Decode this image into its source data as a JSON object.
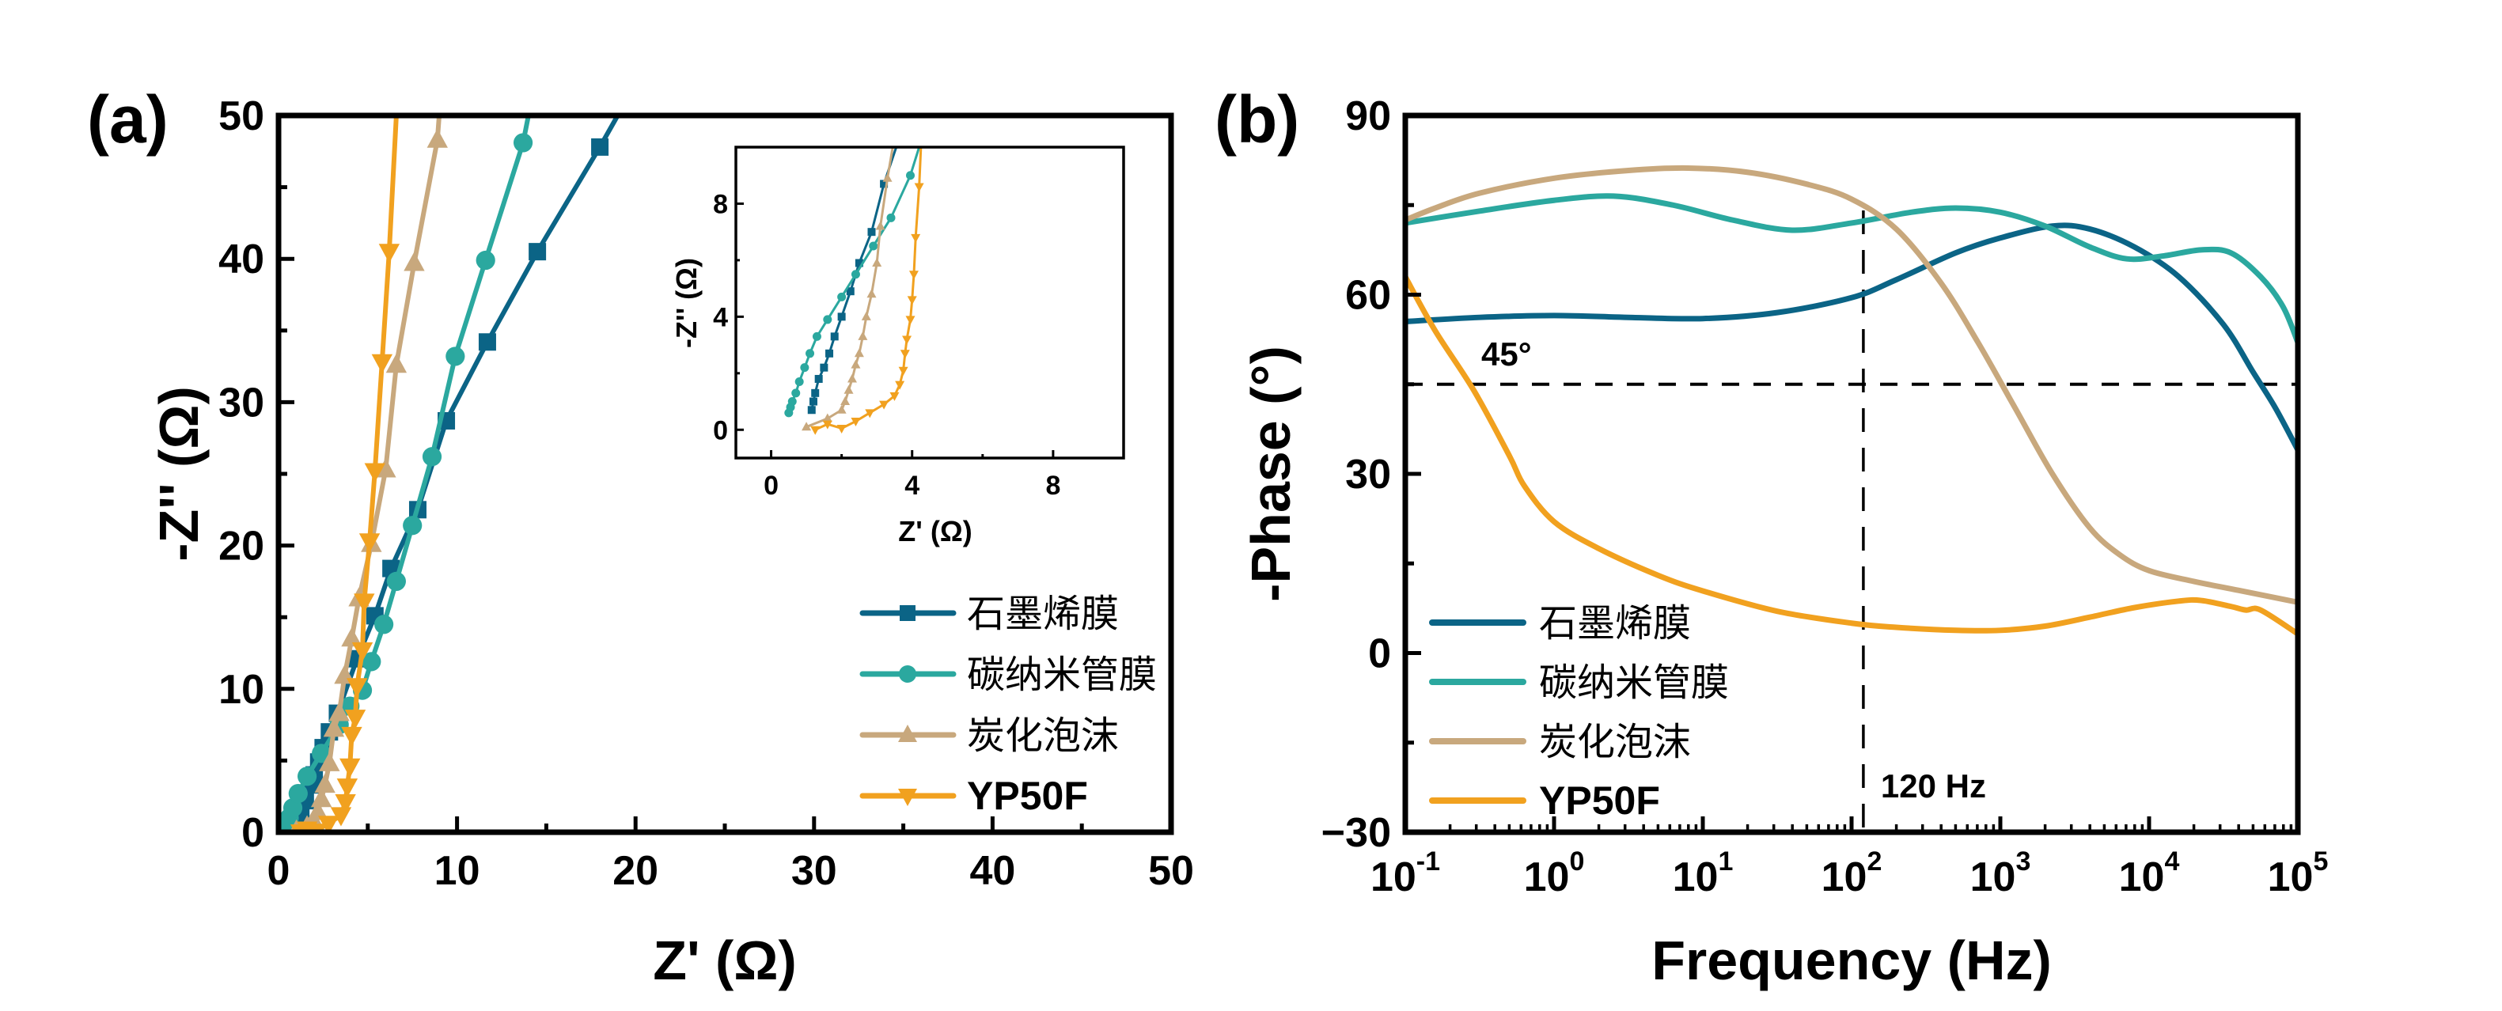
{
  "figure": {
    "panels": [
      "(a)",
      "(b)"
    ]
  },
  "colors": {
    "graphene": "#0b6486",
    "cnt": "#2ba89f",
    "foam": "#c8a87d",
    "yp50f": "#f1a11f"
  },
  "chart_data": [
    {
      "id": "a",
      "type": "scatter",
      "panel_label": "(a)",
      "title": "",
      "xlabel": "Z' (Ω)",
      "ylabel": "-Z'' (Ω)",
      "xlim": [
        0,
        50
      ],
      "ylim": [
        0,
        50
      ],
      "xticks": [
        0,
        10,
        20,
        30,
        40,
        50
      ],
      "yticks": [
        0,
        10,
        20,
        30,
        40,
        50
      ],
      "xtick_labels": [
        "0",
        "10",
        "20",
        "30",
        "40",
        "50"
      ],
      "ytick_labels": [
        "0",
        "10",
        "20",
        "30",
        "40",
        "50"
      ],
      "grid": false,
      "legend_position": "lower-right",
      "series": [
        {
          "name": "石墨烯膜",
          "key": "graphene",
          "marker": "square",
          "points": [
            [
              1.15,
              0.7
            ],
            [
              1.25,
              1.3
            ],
            [
              1.5,
              2.2
            ],
            [
              1.8,
              3.3
            ],
            [
              2.0,
              4.0
            ],
            [
              2.25,
              4.9
            ],
            [
              2.5,
              5.9
            ],
            [
              2.85,
              7.0
            ],
            [
              3.3,
              8.3
            ],
            [
              4.4,
              12.1
            ],
            [
              5.4,
              15.1
            ],
            [
              6.3,
              18.4
            ],
            [
              7.8,
              22.5
            ],
            [
              9.4,
              28.7
            ],
            [
              11.7,
              34.2
            ],
            [
              14.5,
              40.5
            ],
            [
              18.0,
              47.8
            ],
            [
              19.0,
              50
            ]
          ]
        },
        {
          "name": "碳纳米管膜",
          "key": "cnt",
          "marker": "circle",
          "points": [
            [
              0.5,
              0.6
            ],
            [
              0.6,
              1.0
            ],
            [
              0.8,
              1.7
            ],
            [
              1.1,
              2.7
            ],
            [
              1.6,
              3.9
            ],
            [
              2.4,
              5.5
            ],
            [
              3.4,
              7.5
            ],
            [
              4.0,
              8.8
            ],
            [
              4.7,
              9.9
            ],
            [
              5.2,
              11.9
            ],
            [
              5.9,
              14.5
            ],
            [
              6.6,
              17.5
            ],
            [
              7.5,
              21.4
            ],
            [
              8.6,
              26.2
            ],
            [
              9.9,
              33.2
            ],
            [
              11.6,
              39.9
            ],
            [
              13.7,
              48.1
            ],
            [
              14.0,
              50
            ]
          ]
        },
        {
          "name": "炭化泡沫",
          "key": "foam",
          "marker": "triangle-up",
          "points": [
            [
              1.0,
              0.1
            ],
            [
              1.6,
              0.4
            ],
            [
              2.0,
              0.7
            ],
            [
              2.2,
              1.4
            ],
            [
              2.4,
              2.3
            ],
            [
              2.6,
              3.3
            ],
            [
              2.85,
              4.8
            ],
            [
              3.1,
              7.2
            ],
            [
              3.4,
              8.3
            ],
            [
              3.7,
              10.9
            ],
            [
              4.1,
              13.5
            ],
            [
              4.5,
              16.3
            ],
            [
              5.2,
              20.1
            ],
            [
              6.0,
              25.3
            ],
            [
              6.6,
              32.6
            ],
            [
              7.6,
              39.7
            ],
            [
              8.9,
              48.3
            ],
            [
              9.0,
              50
            ]
          ]
        },
        {
          "name": "YP50F",
          "key": "yp50f",
          "marker": "triangle-down",
          "points": [
            [
              1.25,
              0.0
            ],
            [
              1.6,
              0.2
            ],
            [
              2.0,
              0.05
            ],
            [
              2.8,
              0.6
            ],
            [
              3.5,
              1.2
            ],
            [
              3.75,
              2.1
            ],
            [
              3.85,
              3.2
            ],
            [
              4.0,
              4.6
            ],
            [
              4.1,
              6.8
            ],
            [
              4.3,
              8.0
            ],
            [
              4.4,
              10.2
            ],
            [
              4.7,
              12.7
            ],
            [
              4.8,
              16.1
            ],
            [
              5.1,
              20.3
            ],
            [
              5.4,
              25.2
            ],
            [
              5.8,
              32.8
            ],
            [
              6.2,
              40.5
            ],
            [
              6.6,
              50
            ]
          ]
        }
      ]
    },
    {
      "id": "a-inset",
      "type": "scatter",
      "title": "",
      "xlabel": "Z' (Ω)",
      "ylabel": "-Z'' (Ω)",
      "xlim": [
        -1,
        10
      ],
      "ylim": [
        -1,
        10
      ],
      "xticks": [
        0,
        4,
        8
      ],
      "yticks": [
        0,
        4,
        8
      ],
      "xtick_labels": [
        "0",
        "4",
        "8"
      ],
      "ytick_labels": [
        "0",
        "4",
        "8"
      ],
      "grid": false,
      "series": [
        {
          "name": "石墨烯膜",
          "key": "graphene",
          "marker": "square",
          "points": [
            [
              1.15,
              0.7
            ],
            [
              1.2,
              1.0
            ],
            [
              1.25,
              1.3
            ],
            [
              1.35,
              1.8
            ],
            [
              1.5,
              2.2
            ],
            [
              1.65,
              2.7
            ],
            [
              1.8,
              3.3
            ],
            [
              2.0,
              4.0
            ],
            [
              2.25,
              4.9
            ],
            [
              2.5,
              5.9
            ],
            [
              2.85,
              7.0
            ],
            [
              3.2,
              8.7
            ],
            [
              3.55,
              10
            ]
          ]
        },
        {
          "name": "碳纳米管膜",
          "key": "cnt",
          "marker": "circle",
          "points": [
            [
              0.5,
              0.6
            ],
            [
              0.55,
              0.8
            ],
            [
              0.6,
              1.0
            ],
            [
              0.7,
              1.3
            ],
            [
              0.8,
              1.7
            ],
            [
              0.95,
              2.2
            ],
            [
              1.1,
              2.7
            ],
            [
              1.3,
              3.3
            ],
            [
              1.6,
              3.9
            ],
            [
              2.0,
              4.7
            ],
            [
              2.4,
              5.5
            ],
            [
              2.9,
              6.5
            ],
            [
              3.4,
              7.5
            ],
            [
              3.95,
              9.0
            ],
            [
              4.2,
              10
            ]
          ]
        },
        {
          "name": "炭化泡沫",
          "key": "foam",
          "marker": "triangle-up",
          "points": [
            [
              1.0,
              0.1
            ],
            [
              1.6,
              0.4
            ],
            [
              2.0,
              0.7
            ],
            [
              2.1,
              1.0
            ],
            [
              2.2,
              1.4
            ],
            [
              2.3,
              1.8
            ],
            [
              2.4,
              2.3
            ],
            [
              2.5,
              2.7
            ],
            [
              2.6,
              3.3
            ],
            [
              2.7,
              4.0
            ],
            [
              2.85,
              4.8
            ],
            [
              3.0,
              5.9
            ],
            [
              3.1,
              7.2
            ],
            [
              3.3,
              8.9
            ],
            [
              3.45,
              10
            ]
          ]
        },
        {
          "name": "YP50F",
          "key": "yp50f",
          "marker": "triangle-down",
          "points": [
            [
              1.25,
              0.0
            ],
            [
              1.6,
              0.2
            ],
            [
              2.0,
              0.05
            ],
            [
              2.4,
              0.3
            ],
            [
              2.8,
              0.6
            ],
            [
              3.2,
              0.9
            ],
            [
              3.5,
              1.2
            ],
            [
              3.65,
              1.6
            ],
            [
              3.75,
              2.1
            ],
            [
              3.8,
              2.7
            ],
            [
              3.85,
              3.2
            ],
            [
              3.95,
              3.9
            ],
            [
              4.0,
              4.6
            ],
            [
              4.05,
              5.5
            ],
            [
              4.1,
              6.8
            ],
            [
              4.2,
              8.6
            ],
            [
              4.25,
              10
            ]
          ]
        }
      ]
    },
    {
      "id": "b",
      "type": "line",
      "panel_label": "(b)",
      "title": "",
      "xlabel": "Frequency (Hz)",
      "ylabel": "-Phase (°)",
      "xscale": "log",
      "xlim": [
        0.1,
        100000
      ],
      "ylim": [
        -30,
        90
      ],
      "xticks_log10": [
        -1,
        0,
        1,
        2,
        3,
        4,
        5
      ],
      "xtick_labels": [
        [
          "10",
          "-1"
        ],
        [
          "10",
          "0"
        ],
        [
          "10",
          "1"
        ],
        [
          "10",
          "2"
        ],
        [
          "10",
          "3"
        ],
        [
          "10",
          "4"
        ],
        [
          "10",
          "5"
        ]
      ],
      "yticks": [
        -30,
        0,
        30,
        60,
        90
      ],
      "ytick_labels": [
        "−30",
        "0",
        "30",
        "60",
        "90"
      ],
      "grid": false,
      "legend_position": "lower-left",
      "reference_lines": [
        {
          "orientation": "horizontal",
          "value": 45,
          "label": "45°"
        },
        {
          "orientation": "vertical",
          "value": 120,
          "label": "120 Hz"
        }
      ],
      "series": [
        {
          "name": "石墨烯膜",
          "key": "graphene",
          "points_log10f": [
            [
              -1,
              55.5
            ],
            [
              -0.5,
              56.2
            ],
            [
              0,
              56.5
            ],
            [
              0.5,
              56.2
            ],
            [
              1,
              56
            ],
            [
              1.5,
              57
            ],
            [
              2,
              59.5
            ],
            [
              2.3,
              62.5
            ],
            [
              2.7,
              67
            ],
            [
              3,
              69.5
            ],
            [
              3.35,
              71.5
            ],
            [
              3.6,
              71
            ],
            [
              3.9,
              68
            ],
            [
              4.2,
              63
            ],
            [
              4.5,
              55
            ],
            [
              4.7,
              47
            ],
            [
              4.85,
              41
            ],
            [
              5,
              34
            ]
          ]
        },
        {
          "name": "碳纳米管膜",
          "key": "cnt",
          "points_log10f": [
            [
              -1,
              72
            ],
            [
              -0.5,
              74
            ],
            [
              0,
              75.8
            ],
            [
              0.4,
              76.5
            ],
            [
              0.8,
              75
            ],
            [
              1.2,
              72.5
            ],
            [
              1.6,
              70.8
            ],
            [
              2,
              72
            ],
            [
              2.4,
              73.8
            ],
            [
              2.7,
              74.5
            ],
            [
              3,
              73.8
            ],
            [
              3.3,
              71.5
            ],
            [
              3.6,
              68
            ],
            [
              3.85,
              66
            ],
            [
              4.1,
              66.5
            ],
            [
              4.35,
              67.5
            ],
            [
              4.55,
              67
            ],
            [
              4.75,
              63
            ],
            [
              4.9,
              58
            ],
            [
              5,
              52
            ]
          ]
        },
        {
          "name": "炭化泡沫",
          "key": "foam",
          "points_log10f": [
            [
              -1,
              72.5
            ],
            [
              -0.8,
              74.5
            ],
            [
              -0.5,
              77
            ],
            [
              0,
              79.5
            ],
            [
              0.5,
              80.8
            ],
            [
              0.9,
              81.2
            ],
            [
              1.3,
              80.5
            ],
            [
              1.7,
              78.5
            ],
            [
              2,
              76
            ],
            [
              2.3,
              71
            ],
            [
              2.6,
              62
            ],
            [
              2.85,
              52
            ],
            [
              3.1,
              41
            ],
            [
              3.35,
              30
            ],
            [
              3.6,
              21
            ],
            [
              3.8,
              16.5
            ],
            [
              4,
              13.8
            ],
            [
              4.3,
              12
            ],
            [
              4.6,
              10.5
            ],
            [
              5,
              8.5
            ]
          ]
        },
        {
          "name": "YP50F",
          "key": "yp50f",
          "points_log10f": [
            [
              -1,
              63
            ],
            [
              -0.8,
              54
            ],
            [
              -0.54,
              44
            ],
            [
              -0.3,
              33
            ],
            [
              -0.2,
              28
            ],
            [
              0,
              22
            ],
            [
              0.3,
              17.5
            ],
            [
              0.7,
              13
            ],
            [
              1,
              10.4
            ],
            [
              1.5,
              7
            ],
            [
              2,
              5
            ],
            [
              2.3,
              4.3
            ],
            [
              2.7,
              3.8
            ],
            [
              3,
              3.8
            ],
            [
              3.3,
              4.5
            ],
            [
              3.6,
              6
            ],
            [
              3.9,
              7.6
            ],
            [
              4.2,
              8.7
            ],
            [
              4.35,
              8.8
            ],
            [
              4.55,
              7.8
            ],
            [
              4.65,
              7.2
            ],
            [
              4.75,
              7.2
            ],
            [
              5,
              3.2
            ]
          ]
        }
      ]
    }
  ]
}
